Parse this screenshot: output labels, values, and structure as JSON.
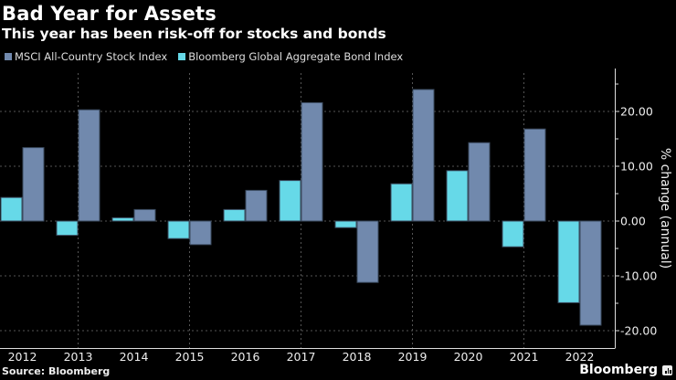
{
  "header": {
    "title": "Bad Year for Assets",
    "subtitle": "This year has been risk-off for stocks and bonds"
  },
  "footer": {
    "source": "Source: Bloomberg",
    "brand": "Bloomberg"
  },
  "chart_data": {
    "type": "bar",
    "title": "Bad Year for Assets",
    "subtitle": "This year has been risk-off for stocks and bonds",
    "xlabel": "",
    "ylabel": "% change (annual)",
    "ylim": [
      -22,
      28
    ],
    "yticks": [
      20,
      10,
      0,
      -10,
      -20
    ],
    "ytick_labels": [
      "20.00",
      "10.00",
      "0.00",
      "-10.00",
      "-20.00"
    ],
    "grid": true,
    "legend_position": "top-left",
    "categories": [
      "2012",
      "2013",
      "2014",
      "2015",
      "2016",
      "2017",
      "2018",
      "2019",
      "2020",
      "2021",
      "2022"
    ],
    "series": [
      {
        "name": "Bloomberg Global Aggregate Bond Index",
        "color": "#66d9e8",
        "values": [
          4.3,
          -2.6,
          0.6,
          -3.2,
          2.1,
          7.4,
          -1.2,
          6.8,
          9.2,
          -4.7,
          -14.9
        ]
      },
      {
        "name": "MSCI All-Country Stock Index",
        "color": "#7189ad",
        "values": [
          13.4,
          20.3,
          2.1,
          -4.3,
          5.6,
          21.6,
          -11.2,
          24.0,
          14.3,
          16.8,
          -19.0
        ]
      }
    ],
    "legend_order": [
      1,
      0
    ]
  }
}
